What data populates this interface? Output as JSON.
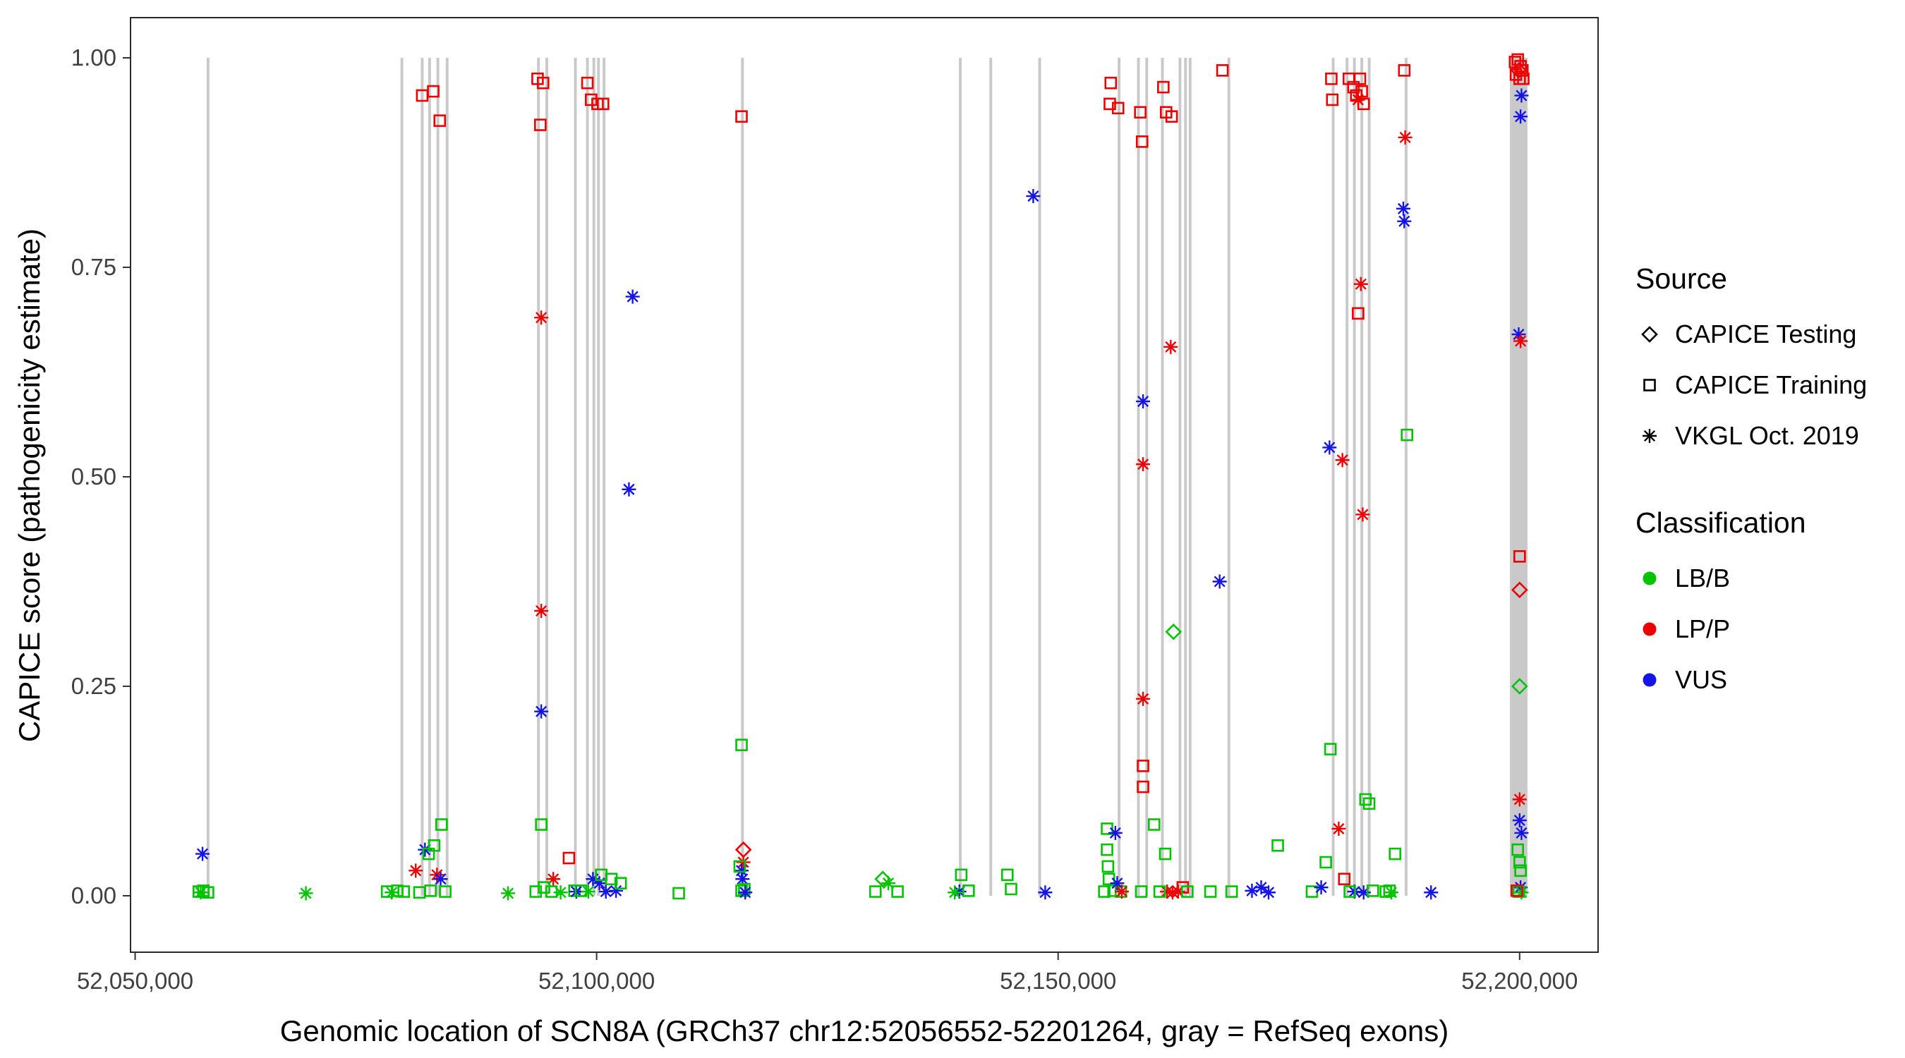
{
  "chart_data": {
    "type": "scatter",
    "title": "",
    "xlabel": "Genomic location of SCN8A (GRCh37 chr12:52056552-52201264, gray = RefSeq exons)",
    "ylabel": "CAPICE score (pathogenicity estimate)",
    "xlim": [
      52049500,
      52208500
    ],
    "ylim": [
      0,
      1
    ],
    "grid": "off",
    "legend_position": "right",
    "x_ticks": [
      {
        "value": 52050000,
        "label": "52,050,000"
      },
      {
        "value": 52100000,
        "label": "52,100,000"
      },
      {
        "value": 52150000,
        "label": "52,150,000"
      },
      {
        "value": 52200000,
        "label": "52,200,000"
      }
    ],
    "y_ticks": [
      {
        "value": 0.0,
        "label": "0.00"
      },
      {
        "value": 0.25,
        "label": "0.25"
      },
      {
        "value": 0.5,
        "label": "0.50"
      },
      {
        "value": 0.75,
        "label": "0.75"
      },
      {
        "value": 1.0,
        "label": "1.00"
      }
    ],
    "colors": {
      "LB/B": "#00C400",
      "LP/P": "#EE0000",
      "VUS": "#1414E6",
      "exon": "#C9C9C9"
    },
    "shape_by_source": {
      "testing": "diamond",
      "training": "square",
      "vkgl": "asterisk"
    },
    "legend": {
      "source_title": "Source",
      "source_items": [
        {
          "label": "CAPICE Testing",
          "shape": "diamond"
        },
        {
          "label": "CAPICE Training",
          "shape": "square"
        },
        {
          "label": "VKGL Oct. 2019",
          "shape": "asterisk"
        }
      ],
      "classification_title": "Classification",
      "classification_items": [
        {
          "label": "LB/B",
          "color_key": "LB/B"
        },
        {
          "label": "LP/P",
          "color_key": "LP/P"
        },
        {
          "label": "VUS",
          "color_key": "VUS"
        }
      ]
    },
    "exon_fields": [
      "x",
      "width_bp"
    ],
    "exons": [
      [
        52057900
      ],
      [
        52078900
      ],
      [
        52081100
      ],
      [
        52081900
      ],
      [
        52082800
      ],
      [
        52083800
      ],
      [
        52093700
      ],
      [
        52094600
      ],
      [
        52097700
      ],
      [
        52099000
      ],
      [
        52099700
      ],
      [
        52100200
      ],
      [
        52100800
      ],
      [
        52115800
      ],
      [
        52139400
      ],
      [
        52142700
      ],
      [
        52148000
      ],
      [
        52156600
      ],
      [
        52158700
      ],
      [
        52159600
      ],
      [
        52161300
      ],
      [
        52163200
      ],
      [
        52163800
      ],
      [
        52164300
      ],
      [
        52168500
      ],
      [
        52179800
      ],
      [
        52181300
      ],
      [
        52182100
      ],
      [
        52182900
      ],
      [
        52183700
      ],
      [
        52187700
      ],
      [
        52199900,
        1900
      ]
    ],
    "point_fields": [
      "x",
      "y",
      "source",
      "classification"
    ],
    "points": [
      [
        52057300,
        0.05,
        "vkgl",
        "VUS"
      ],
      [
        52056900,
        0.005,
        "training",
        "LB/B"
      ],
      [
        52057400,
        0.006,
        "training",
        "LB/B"
      ],
      [
        52057900,
        0.004,
        "training",
        "LB/B"
      ],
      [
        52057100,
        0.004,
        "vkgl",
        "LB/B"
      ],
      [
        52068500,
        0.003,
        "vkgl",
        "LB/B"
      ],
      [
        52077300,
        0.005,
        "training",
        "LB/B"
      ],
      [
        52077800,
        0.004,
        "vkgl",
        "LB/B"
      ],
      [
        52078400,
        0.006,
        "training",
        "LB/B"
      ],
      [
        52079100,
        0.005,
        "training",
        "LB/B"
      ],
      [
        52080400,
        0.03,
        "vkgl",
        "LP/P"
      ],
      [
        52081100,
        0.955,
        "training",
        "LP/P"
      ],
      [
        52082300,
        0.96,
        "training",
        "LP/P"
      ],
      [
        52083000,
        0.925,
        "training",
        "LP/P"
      ],
      [
        52081400,
        0.055,
        "vkgl",
        "VUS"
      ],
      [
        52081800,
        0.05,
        "training",
        "LB/B"
      ],
      [
        52082400,
        0.06,
        "training",
        "LB/B"
      ],
      [
        52083200,
        0.085,
        "training",
        "LB/B"
      ],
      [
        52082700,
        0.025,
        "vkgl",
        "LP/P"
      ],
      [
        52083100,
        0.02,
        "vkgl",
        "VUS"
      ],
      [
        52082000,
        0.006,
        "training",
        "LB/B"
      ],
      [
        52083600,
        0.005,
        "training",
        "LB/B"
      ],
      [
        52080800,
        0.004,
        "training",
        "LB/B"
      ],
      [
        52090400,
        0.003,
        "vkgl",
        "LB/B"
      ],
      [
        52093600,
        0.975,
        "training",
        "LP/P"
      ],
      [
        52094200,
        0.97,
        "training",
        "LP/P"
      ],
      [
        52093900,
        0.92,
        "training",
        "LP/P"
      ],
      [
        52094000,
        0.69,
        "vkgl",
        "LP/P"
      ],
      [
        52094000,
        0.34,
        "vkgl",
        "LP/P"
      ],
      [
        52094000,
        0.22,
        "vkgl",
        "VUS"
      ],
      [
        52094000,
        0.085,
        "training",
        "LB/B"
      ],
      [
        52095300,
        0.02,
        "vkgl",
        "LP/P"
      ],
      [
        52097000,
        0.045,
        "training",
        "LP/P"
      ],
      [
        52093400,
        0.005,
        "training",
        "LB/B"
      ],
      [
        52094300,
        0.01,
        "training",
        "LB/B"
      ],
      [
        52095100,
        0.005,
        "training",
        "LB/B"
      ],
      [
        52096100,
        0.004,
        "vkgl",
        "LB/B"
      ],
      [
        52097600,
        0.006,
        "training",
        "LB/B"
      ],
      [
        52099000,
        0.97,
        "training",
        "LP/P"
      ],
      [
        52099400,
        0.95,
        "training",
        "LP/P"
      ],
      [
        52100100,
        0.945,
        "training",
        "LP/P"
      ],
      [
        52100700,
        0.945,
        "training",
        "LP/P"
      ],
      [
        52103900,
        0.715,
        "vkgl",
        "VUS"
      ],
      [
        52103500,
        0.485,
        "vkgl",
        "VUS"
      ],
      [
        52097800,
        0.005,
        "vkgl",
        "VUS"
      ],
      [
        52099600,
        0.02,
        "vkgl",
        "VUS"
      ],
      [
        52100300,
        0.015,
        "vkgl",
        "VUS"
      ],
      [
        52101000,
        0.005,
        "vkgl",
        "VUS"
      ],
      [
        52102100,
        0.006,
        "vkgl",
        "VUS"
      ],
      [
        52100500,
        0.025,
        "training",
        "LB/B"
      ],
      [
        52101600,
        0.02,
        "training",
        "LB/B"
      ],
      [
        52102600,
        0.015,
        "training",
        "LB/B"
      ],
      [
        52099100,
        0.005,
        "vkgl",
        "LB/B"
      ],
      [
        52098300,
        0.006,
        "training",
        "LB/B"
      ],
      [
        52108900,
        0.003,
        "training",
        "LB/B"
      ],
      [
        52115700,
        0.93,
        "training",
        "LP/P"
      ],
      [
        52115700,
        0.18,
        "training",
        "LB/B"
      ],
      [
        52115900,
        0.055,
        "testing",
        "LP/P"
      ],
      [
        52115900,
        0.04,
        "vkgl",
        "LP/P"
      ],
      [
        52115700,
        0.03,
        "vkgl",
        "VUS"
      ],
      [
        52115800,
        0.02,
        "vkgl",
        "VUS"
      ],
      [
        52115500,
        0.035,
        "training",
        "LB/B"
      ],
      [
        52115700,
        0.006,
        "training",
        "LB/B"
      ],
      [
        52116000,
        0.008,
        "training",
        "LB/B"
      ],
      [
        52116100,
        0.004,
        "vkgl",
        "VUS"
      ],
      [
        52131000,
        0.02,
        "testing",
        "LB/B"
      ],
      [
        52131600,
        0.015,
        "vkgl",
        "LB/B"
      ],
      [
        52130200,
        0.005,
        "training",
        "LB/B"
      ],
      [
        52132600,
        0.005,
        "training",
        "LB/B"
      ],
      [
        52139500,
        0.025,
        "training",
        "LB/B"
      ],
      [
        52139300,
        0.005,
        "vkgl",
        "VUS"
      ],
      [
        52138800,
        0.004,
        "vkgl",
        "LB/B"
      ],
      [
        52140300,
        0.006,
        "training",
        "LB/B"
      ],
      [
        52144500,
        0.025,
        "training",
        "LB/B"
      ],
      [
        52144900,
        0.008,
        "training",
        "LB/B"
      ],
      [
        52147300,
        0.835,
        "vkgl",
        "VUS"
      ],
      [
        52148600,
        0.004,
        "vkgl",
        "VUS"
      ],
      [
        52155700,
        0.97,
        "training",
        "LP/P"
      ],
      [
        52155600,
        0.945,
        "training",
        "LP/P"
      ],
      [
        52156500,
        0.94,
        "training",
        "LP/P"
      ],
      [
        52155300,
        0.08,
        "training",
        "LB/B"
      ],
      [
        52155300,
        0.055,
        "training",
        "LB/B"
      ],
      [
        52155400,
        0.035,
        "training",
        "LB/B"
      ],
      [
        52155500,
        0.02,
        "training",
        "LB/B"
      ],
      [
        52155000,
        0.005,
        "training",
        "LB/B"
      ],
      [
        52156000,
        0.006,
        "training",
        "LB/B"
      ],
      [
        52156800,
        0.005,
        "training",
        "LB/B"
      ],
      [
        52156200,
        0.075,
        "vkgl",
        "VUS"
      ],
      [
        52156400,
        0.015,
        "vkgl",
        "VUS"
      ],
      [
        52156900,
        0.005,
        "vkgl",
        "LP/P"
      ],
      [
        52158900,
        0.935,
        "training",
        "LP/P"
      ],
      [
        52159100,
        0.9,
        "training",
        "LP/P"
      ],
      [
        52159200,
        0.59,
        "vkgl",
        "VUS"
      ],
      [
        52159200,
        0.515,
        "vkgl",
        "LP/P"
      ],
      [
        52159200,
        0.235,
        "vkgl",
        "LP/P"
      ],
      [
        52159200,
        0.155,
        "training",
        "LP/P"
      ],
      [
        52159200,
        0.13,
        "training",
        "LP/P"
      ],
      [
        52160400,
        0.085,
        "training",
        "LB/B"
      ],
      [
        52159000,
        0.005,
        "training",
        "LB/B"
      ],
      [
        52161400,
        0.965,
        "training",
        "LP/P"
      ],
      [
        52161700,
        0.935,
        "training",
        "LP/P"
      ],
      [
        52162300,
        0.93,
        "training",
        "LP/P"
      ],
      [
        52162200,
        0.655,
        "vkgl",
        "LP/P"
      ],
      [
        52162500,
        0.315,
        "testing",
        "LB/B"
      ],
      [
        52161800,
        0.005,
        "vkgl",
        "LP/P"
      ],
      [
        52162400,
        0.004,
        "vkgl",
        "LP/P"
      ],
      [
        52163000,
        0.005,
        "vkgl",
        "LP/P"
      ],
      [
        52163500,
        0.01,
        "training",
        "LP/P"
      ],
      [
        52161000,
        0.005,
        "training",
        "LB/B"
      ],
      [
        52164000,
        0.005,
        "training",
        "LB/B"
      ],
      [
        52161600,
        0.05,
        "training",
        "LB/B"
      ],
      [
        52167800,
        0.985,
        "training",
        "LP/P"
      ],
      [
        52167500,
        0.375,
        "vkgl",
        "VUS"
      ],
      [
        52166500,
        0.005,
        "training",
        "LB/B"
      ],
      [
        52168800,
        0.005,
        "training",
        "LB/B"
      ],
      [
        52171000,
        0.006,
        "vkgl",
        "VUS"
      ],
      [
        52172000,
        0.01,
        "vkgl",
        "VUS"
      ],
      [
        52172800,
        0.004,
        "vkgl",
        "VUS"
      ],
      [
        52173800,
        0.06,
        "training",
        "LB/B"
      ],
      [
        52177500,
        0.005,
        "training",
        "LB/B"
      ],
      [
        52178500,
        0.01,
        "vkgl",
        "VUS"
      ],
      [
        52179600,
        0.975,
        "training",
        "LP/P"
      ],
      [
        52179700,
        0.95,
        "training",
        "LP/P"
      ],
      [
        52179400,
        0.535,
        "vkgl",
        "VUS"
      ],
      [
        52179500,
        0.175,
        "training",
        "LB/B"
      ],
      [
        52179000,
        0.04,
        "training",
        "LB/B"
      ],
      [
        52180800,
        0.52,
        "vkgl",
        "LP/P"
      ],
      [
        52180400,
        0.08,
        "vkgl",
        "LP/P"
      ],
      [
        52181500,
        0.975,
        "training",
        "LP/P"
      ],
      [
        52182000,
        0.965,
        "training",
        "LP/P"
      ],
      [
        52182300,
        0.955,
        "training",
        "LP/P"
      ],
      [
        52182700,
        0.975,
        "training",
        "LP/P"
      ],
      [
        52182900,
        0.96,
        "training",
        "LP/P"
      ],
      [
        52183100,
        0.945,
        "training",
        "LP/P"
      ],
      [
        52182500,
        0.95,
        "vkgl",
        "LP/P"
      ],
      [
        52182800,
        0.73,
        "vkgl",
        "LP/P"
      ],
      [
        52182500,
        0.695,
        "training",
        "LP/P"
      ],
      [
        52183000,
        0.455,
        "vkgl",
        "LP/P"
      ],
      [
        52183300,
        0.115,
        "training",
        "LB/B"
      ],
      [
        52183700,
        0.11,
        "training",
        "LB/B"
      ],
      [
        52181000,
        0.02,
        "training",
        "LP/P"
      ],
      [
        52182100,
        0.005,
        "vkgl",
        "VUS"
      ],
      [
        52183100,
        0.004,
        "vkgl",
        "VUS"
      ],
      [
        52181600,
        0.005,
        "training",
        "LB/B"
      ],
      [
        52184100,
        0.006,
        "training",
        "LB/B"
      ],
      [
        52187500,
        0.985,
        "training",
        "LP/P"
      ],
      [
        52187600,
        0.905,
        "vkgl",
        "LP/P"
      ],
      [
        52187400,
        0.82,
        "vkgl",
        "VUS"
      ],
      [
        52187500,
        0.805,
        "vkgl",
        "VUS"
      ],
      [
        52187800,
        0.55,
        "training",
        "LB/B"
      ],
      [
        52186500,
        0.05,
        "training",
        "LB/B"
      ],
      [
        52185500,
        0.005,
        "training",
        "LB/B"
      ],
      [
        52186100,
        0.004,
        "vkgl",
        "LB/B"
      ],
      [
        52185900,
        0.006,
        "training",
        "LB/B"
      ],
      [
        52190400,
        0.004,
        "vkgl",
        "VUS"
      ],
      [
        52199500,
        0.995,
        "training",
        "LP/P"
      ],
      [
        52199800,
        0.998,
        "training",
        "LP/P"
      ],
      [
        52200100,
        0.99,
        "training",
        "LP/P"
      ],
      [
        52200300,
        0.985,
        "training",
        "LP/P"
      ],
      [
        52199600,
        0.98,
        "training",
        "LP/P"
      ],
      [
        52200000,
        0.975,
        "training",
        "LP/P"
      ],
      [
        52200400,
        0.975,
        "training",
        "LP/P"
      ],
      [
        52199900,
        0.985,
        "testing",
        "LP/P"
      ],
      [
        52200200,
        0.955,
        "vkgl",
        "VUS"
      ],
      [
        52200100,
        0.93,
        "vkgl",
        "VUS"
      ],
      [
        52199900,
        0.67,
        "vkgl",
        "VUS"
      ],
      [
        52200100,
        0.662,
        "vkgl",
        "LP/P"
      ],
      [
        52200000,
        0.405,
        "training",
        "LP/P"
      ],
      [
        52200000,
        0.365,
        "testing",
        "LP/P"
      ],
      [
        52200000,
        0.25,
        "testing",
        "LB/B"
      ],
      [
        52200000,
        0.115,
        "vkgl",
        "LP/P"
      ],
      [
        52200000,
        0.09,
        "vkgl",
        "VUS"
      ],
      [
        52200200,
        0.075,
        "vkgl",
        "VUS"
      ],
      [
        52199800,
        0.055,
        "training",
        "LB/B"
      ],
      [
        52200000,
        0.04,
        "training",
        "LB/B"
      ],
      [
        52200100,
        0.03,
        "training",
        "LB/B"
      ],
      [
        52200100,
        0.01,
        "vkgl",
        "VUS"
      ],
      [
        52199900,
        0.005,
        "training",
        "LB/B"
      ],
      [
        52200200,
        0.004,
        "vkgl",
        "LB/B"
      ],
      [
        52199700,
        0.006,
        "training",
        "LP/P"
      ]
    ]
  }
}
